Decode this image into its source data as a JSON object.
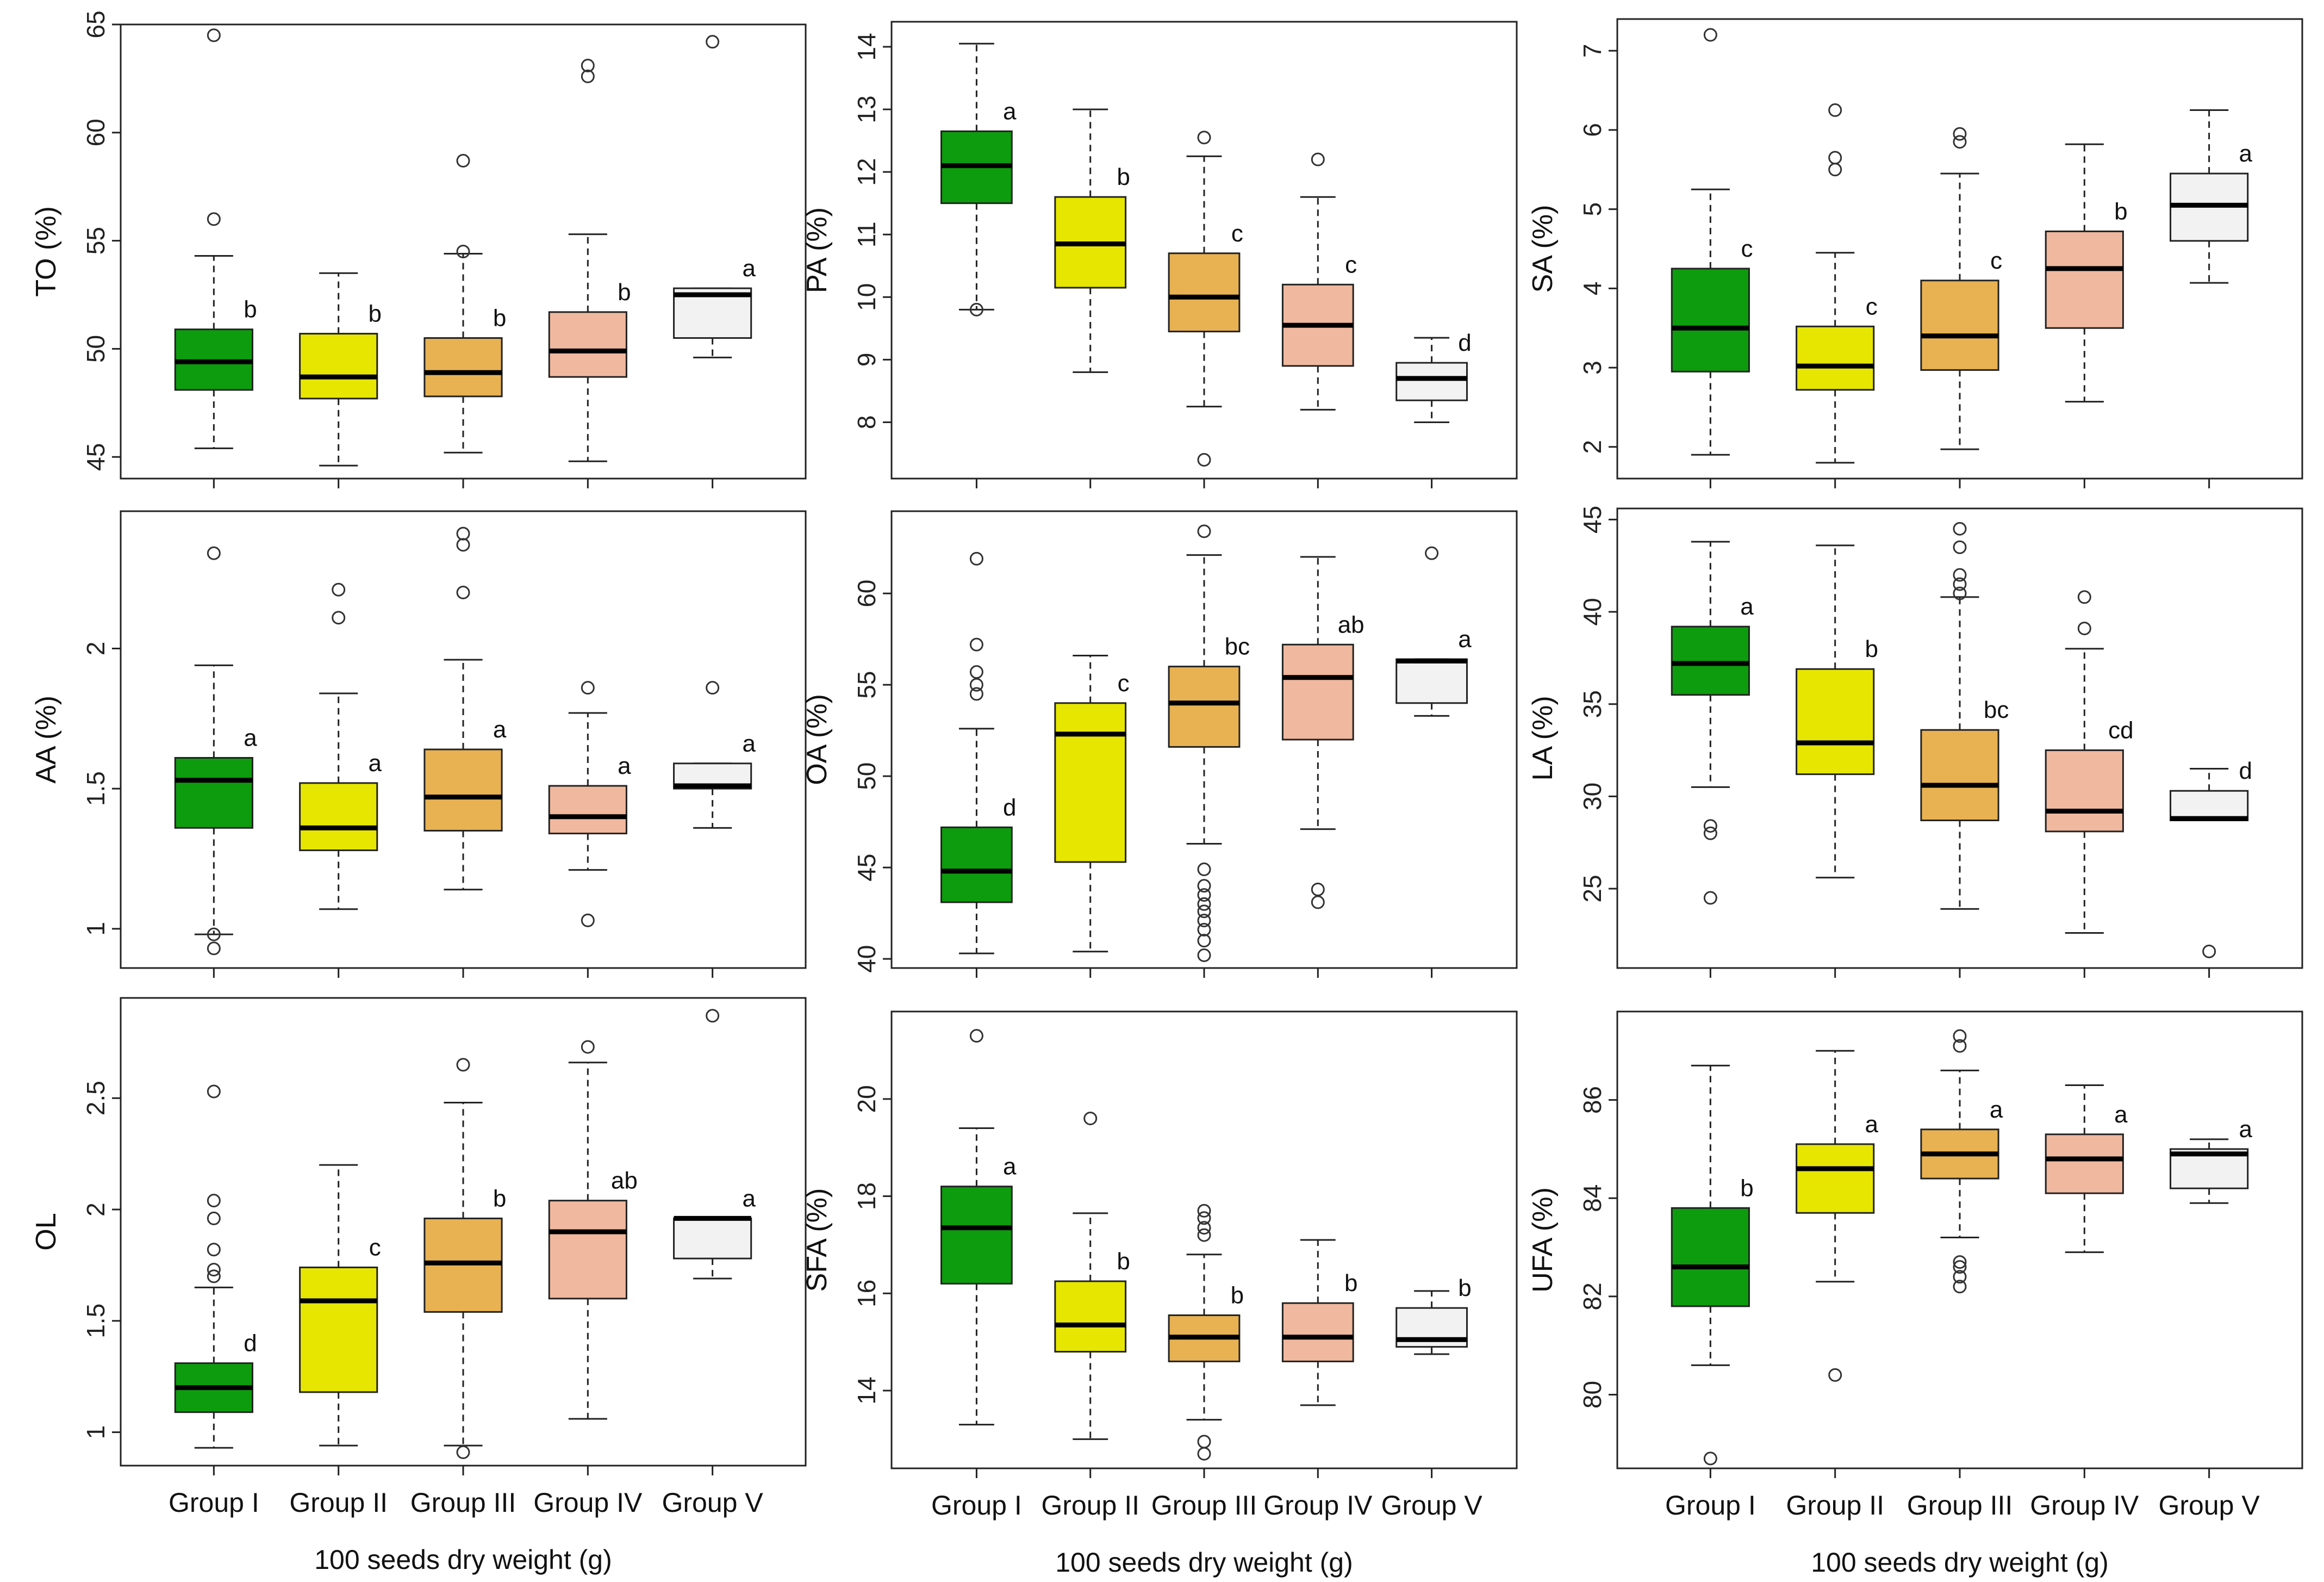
{
  "colors": {
    "Group I": "#0d9c0d",
    "Group II": "#e6e600",
    "Group III": "#e8b252",
    "Group IV": "#f0b89e",
    "Group V": "#f2f2f2"
  },
  "chart_data": [
    {
      "type": "box",
      "ylabel": "TO (%)",
      "ylim": [
        44,
        65
      ],
      "yticks": [
        45,
        50,
        55,
        60,
        65
      ],
      "categories": [
        "Group I",
        "Group II",
        "Group III",
        "Group IV",
        "Group V"
      ],
      "series": [
        {
          "name": "Group I",
          "min": 45.4,
          "q1": 48.1,
          "median": 49.4,
          "q3": 50.9,
          "max": 54.3,
          "outliers": [
            56.0,
            64.5
          ],
          "letter": "b"
        },
        {
          "name": "Group II",
          "min": 44.6,
          "q1": 47.7,
          "median": 48.7,
          "q3": 50.7,
          "max": 53.5,
          "outliers": [],
          "letter": "b"
        },
        {
          "name": "Group III",
          "min": 45.2,
          "q1": 47.8,
          "median": 48.9,
          "q3": 50.5,
          "max": 54.4,
          "outliers": [
            54.5,
            58.7
          ],
          "letter": "b"
        },
        {
          "name": "Group IV",
          "min": 44.8,
          "q1": 48.7,
          "median": 49.9,
          "q3": 51.7,
          "max": 55.3,
          "outliers": [
            62.6,
            63.1
          ],
          "letter": "b"
        },
        {
          "name": "Group V",
          "min": 49.6,
          "q1": 50.5,
          "median": 52.5,
          "q3": 52.8,
          "max": 52.8,
          "outliers": [
            64.2
          ],
          "letter": "a"
        }
      ]
    },
    {
      "type": "box",
      "ylabel": "PA (%)",
      "ylim": [
        7.1,
        14.4
      ],
      "yticks": [
        8,
        9,
        10,
        11,
        12,
        13,
        14
      ],
      "categories": [
        "Group I",
        "Group II",
        "Group III",
        "Group IV",
        "Group V"
      ],
      "series": [
        {
          "name": "Group I",
          "min": 9.8,
          "q1": 11.5,
          "median": 12.1,
          "q3": 12.65,
          "max": 14.05,
          "outliers": [
            9.8
          ],
          "letter": "a"
        },
        {
          "name": "Group II",
          "min": 8.8,
          "q1": 10.15,
          "median": 10.85,
          "q3": 11.6,
          "max": 13.0,
          "outliers": [],
          "letter": "b"
        },
        {
          "name": "Group III",
          "min": 8.25,
          "q1": 9.45,
          "median": 10.0,
          "q3": 10.7,
          "max": 12.25,
          "outliers": [
            7.4,
            12.55
          ],
          "letter": "c"
        },
        {
          "name": "Group IV",
          "min": 8.2,
          "q1": 8.9,
          "median": 9.55,
          "q3": 10.2,
          "max": 11.6,
          "outliers": [
            12.2
          ],
          "letter": "c"
        },
        {
          "name": "Group V",
          "min": 8.0,
          "q1": 8.35,
          "median": 8.7,
          "q3": 8.95,
          "max": 9.35,
          "outliers": [],
          "letter": "d"
        }
      ]
    },
    {
      "type": "box",
      "ylabel": "SA (%)",
      "ylim": [
        1.6,
        7.4
      ],
      "yticks": [
        2,
        3,
        4,
        5,
        6,
        7
      ],
      "categories": [
        "Group I",
        "Group II",
        "Group III",
        "Group IV",
        "Group V"
      ],
      "series": [
        {
          "name": "Group I",
          "min": 1.9,
          "q1": 2.95,
          "median": 3.5,
          "q3": 4.25,
          "max": 5.25,
          "outliers": [
            7.2
          ],
          "letter": "c"
        },
        {
          "name": "Group II",
          "min": 1.8,
          "q1": 2.72,
          "median": 3.02,
          "q3": 3.52,
          "max": 4.45,
          "outliers": [
            5.5,
            5.65,
            6.25
          ],
          "letter": "c"
        },
        {
          "name": "Group III",
          "min": 1.97,
          "q1": 2.97,
          "median": 3.4,
          "q3": 4.1,
          "max": 5.45,
          "outliers": [
            5.85,
            5.95
          ],
          "letter": "c"
        },
        {
          "name": "Group IV",
          "min": 2.57,
          "q1": 3.5,
          "median": 4.25,
          "q3": 4.72,
          "max": 5.82,
          "outliers": [],
          "letter": "b"
        },
        {
          "name": "Group V",
          "min": 4.07,
          "q1": 4.6,
          "median": 5.05,
          "q3": 5.45,
          "max": 6.25,
          "outliers": [],
          "letter": "a"
        }
      ]
    },
    {
      "type": "box",
      "ylabel": "AA (%)",
      "ylim": [
        0.86,
        2.49
      ],
      "yticks": [
        1.0,
        1.5,
        2.0
      ],
      "categories": [
        "Group I",
        "Group II",
        "Group III",
        "Group IV",
        "Group V"
      ],
      "series": [
        {
          "name": "Group I",
          "min": 0.98,
          "q1": 1.36,
          "median": 1.53,
          "q3": 1.61,
          "max": 1.94,
          "outliers": [
            0.93,
            0.98,
            2.34
          ],
          "letter": "a"
        },
        {
          "name": "Group II",
          "min": 1.07,
          "q1": 1.28,
          "median": 1.36,
          "q3": 1.52,
          "max": 1.84,
          "outliers": [
            2.11,
            2.21
          ],
          "letter": "a"
        },
        {
          "name": "Group III",
          "min": 1.14,
          "q1": 1.35,
          "median": 1.47,
          "q3": 1.64,
          "max": 1.96,
          "outliers": [
            2.2,
            2.37,
            2.41
          ],
          "letter": "a"
        },
        {
          "name": "Group IV",
          "min": 1.21,
          "q1": 1.34,
          "median": 1.4,
          "q3": 1.51,
          "max": 1.77,
          "outliers": [
            1.03,
            1.86
          ],
          "letter": "a"
        },
        {
          "name": "Group V",
          "min": 1.36,
          "q1": 1.5,
          "median": 1.51,
          "q3": 1.59,
          "max": 1.59,
          "outliers": [
            1.86
          ],
          "letter": "a"
        }
      ]
    },
    {
      "type": "box",
      "ylabel": "OA (%)",
      "ylim": [
        39.5,
        64.5
      ],
      "yticks": [
        40,
        45,
        50,
        55,
        60
      ],
      "categories": [
        "Group I",
        "Group II",
        "Group III",
        "Group IV",
        "Group V"
      ],
      "series": [
        {
          "name": "Group I",
          "min": 40.3,
          "q1": 43.1,
          "median": 44.8,
          "q3": 47.2,
          "max": 52.6,
          "outliers": [
            54.5,
            55.0,
            55.7,
            57.2,
            61.9
          ],
          "letter": "d"
        },
        {
          "name": "Group II",
          "min": 40.4,
          "q1": 45.3,
          "median": 52.3,
          "q3": 54.0,
          "max": 56.6,
          "outliers": [],
          "letter": "c"
        },
        {
          "name": "Group III",
          "min": 46.3,
          "q1": 51.6,
          "median": 54.0,
          "q3": 56.0,
          "max": 62.1,
          "outliers": [
            40.2,
            41.0,
            41.6,
            42.1,
            42.6,
            43.0,
            43.5,
            44.0,
            44.9,
            63.4
          ],
          "letter": "bc"
        },
        {
          "name": "Group IV",
          "min": 47.1,
          "q1": 52.0,
          "median": 55.4,
          "q3": 57.2,
          "max": 62.0,
          "outliers": [
            43.1,
            43.8
          ],
          "letter": "ab"
        },
        {
          "name": "Group V",
          "min": 53.3,
          "q1": 54.0,
          "median": 56.3,
          "q3": 56.4,
          "max": 56.4,
          "outliers": [
            62.2
          ],
          "letter": "a"
        }
      ]
    },
    {
      "type": "box",
      "ylabel": "LA (%)",
      "ylim": [
        20.7,
        45.6
      ],
      "yticks": [
        25,
        30,
        35,
        40,
        45
      ],
      "categories": [
        "Group I",
        "Group II",
        "Group III",
        "Group IV",
        "Group V"
      ],
      "series": [
        {
          "name": "Group I",
          "min": 30.5,
          "q1": 35.5,
          "median": 37.2,
          "q3": 39.2,
          "max": 43.8,
          "outliers": [
            24.5,
            28.0,
            28.4
          ],
          "letter": "a"
        },
        {
          "name": "Group II",
          "min": 25.6,
          "q1": 31.2,
          "median": 32.9,
          "q3": 36.9,
          "max": 43.6,
          "outliers": [],
          "letter": "b"
        },
        {
          "name": "Group III",
          "min": 23.9,
          "q1": 28.7,
          "median": 30.6,
          "q3": 33.6,
          "max": 40.8,
          "outliers": [
            41.0,
            41.5,
            42.0,
            43.5,
            44.5
          ],
          "letter": "bc"
        },
        {
          "name": "Group IV",
          "min": 22.6,
          "q1": 28.1,
          "median": 29.2,
          "q3": 32.5,
          "max": 38.0,
          "outliers": [
            39.1,
            40.8
          ],
          "letter": "cd"
        },
        {
          "name": "Group V",
          "min": 28.7,
          "q1": 28.7,
          "median": 28.8,
          "q3": 30.3,
          "max": 31.5,
          "outliers": [
            21.6
          ],
          "letter": "d"
        }
      ]
    },
    {
      "type": "box",
      "ylabel": "OL",
      "ylim": [
        0.85,
        2.95
      ],
      "yticks": [
        1.0,
        1.5,
        2.0,
        2.5
      ],
      "categories": [
        "Group I",
        "Group II",
        "Group III",
        "Group IV",
        "Group V"
      ],
      "series": [
        {
          "name": "Group I",
          "min": 0.93,
          "q1": 1.09,
          "median": 1.2,
          "q3": 1.31,
          "max": 1.65,
          "outliers": [
            1.7,
            1.73,
            1.82,
            1.96,
            2.04,
            2.53
          ],
          "letter": "d"
        },
        {
          "name": "Group II",
          "min": 0.94,
          "q1": 1.18,
          "median": 1.59,
          "q3": 1.74,
          "max": 2.2,
          "outliers": [],
          "letter": "c"
        },
        {
          "name": "Group III",
          "min": 0.94,
          "q1": 1.54,
          "median": 1.76,
          "q3": 1.96,
          "max": 2.48,
          "outliers": [
            0.91,
            2.65
          ],
          "letter": "b"
        },
        {
          "name": "Group IV",
          "min": 1.06,
          "q1": 1.6,
          "median": 1.9,
          "q3": 2.04,
          "max": 2.66,
          "outliers": [
            2.73
          ],
          "letter": "ab"
        },
        {
          "name": "Group V",
          "min": 1.69,
          "q1": 1.78,
          "median": 1.96,
          "q3": 1.96,
          "max": 1.96,
          "outliers": [
            2.87
          ],
          "letter": "a"
        }
      ]
    },
    {
      "type": "box",
      "ylabel": "SFA (%)",
      "ylim": [
        12.4,
        21.8
      ],
      "yticks": [
        14,
        16,
        18,
        20
      ],
      "categories": [
        "Group I",
        "Group II",
        "Group III",
        "Group IV",
        "Group V"
      ],
      "series": [
        {
          "name": "Group I",
          "min": 13.3,
          "q1": 16.2,
          "median": 17.35,
          "q3": 18.2,
          "max": 19.4,
          "outliers": [
            21.3
          ],
          "letter": "a"
        },
        {
          "name": "Group II",
          "min": 13.0,
          "q1": 14.8,
          "median": 15.35,
          "q3": 16.25,
          "max": 17.65,
          "outliers": [
            19.6
          ],
          "letter": "b"
        },
        {
          "name": "Group III",
          "min": 13.4,
          "q1": 14.6,
          "median": 15.1,
          "q3": 15.55,
          "max": 16.8,
          "outliers": [
            12.7,
            12.95,
            17.2,
            17.35,
            17.55,
            17.7
          ],
          "letter": "b"
        },
        {
          "name": "Group IV",
          "min": 13.7,
          "q1": 14.6,
          "median": 15.1,
          "q3": 15.8,
          "max": 17.1,
          "outliers": [],
          "letter": "b"
        },
        {
          "name": "Group V",
          "min": 14.75,
          "q1": 14.9,
          "median": 15.05,
          "q3": 15.7,
          "max": 16.05,
          "outliers": [],
          "letter": "b"
        }
      ]
    },
    {
      "type": "box",
      "ylabel": "UFA (%)",
      "ylim": [
        78.5,
        87.8
      ],
      "yticks": [
        80,
        82,
        84,
        86
      ],
      "categories": [
        "Group I",
        "Group II",
        "Group III",
        "Group IV",
        "Group V"
      ],
      "series": [
        {
          "name": "Group I",
          "min": 80.6,
          "q1": 81.8,
          "median": 82.6,
          "q3": 83.8,
          "max": 86.7,
          "outliers": [
            78.7
          ],
          "letter": "b"
        },
        {
          "name": "Group II",
          "min": 82.3,
          "q1": 83.7,
          "median": 84.6,
          "q3": 85.1,
          "max": 87.0,
          "outliers": [
            80.4
          ],
          "letter": "a"
        },
        {
          "name": "Group III",
          "min": 83.2,
          "q1": 84.4,
          "median": 84.9,
          "q3": 85.4,
          "max": 86.6,
          "outliers": [
            82.2,
            82.4,
            82.6,
            82.7,
            87.1,
            87.3
          ],
          "letter": "a"
        },
        {
          "name": "Group IV",
          "min": 82.9,
          "q1": 84.1,
          "median": 84.8,
          "q3": 85.3,
          "max": 86.3,
          "outliers": [],
          "letter": "a"
        },
        {
          "name": "Group V",
          "min": 83.9,
          "q1": 84.2,
          "median": 84.9,
          "q3": 85.0,
          "max": 85.2,
          "outliers": [],
          "letter": "a"
        }
      ]
    }
  ],
  "xaxis": {
    "labels": [
      "Group I",
      "Group II",
      "Group III",
      "Group IV",
      "Group V"
    ],
    "title": "100 seeds dry weight (g)"
  }
}
